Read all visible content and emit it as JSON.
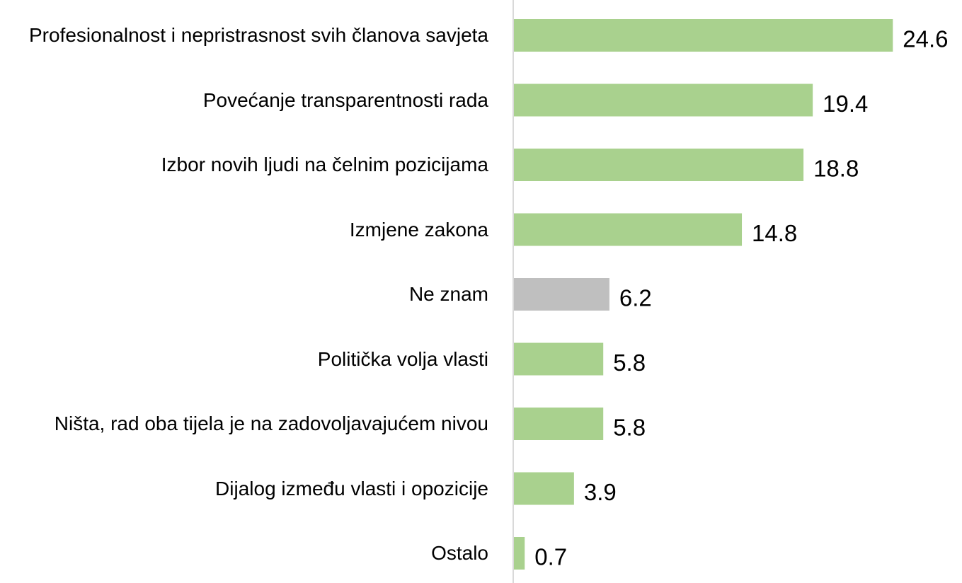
{
  "chart_data": {
    "type": "barh",
    "categories": [
      "Profesionalnost i nepristrasnost svih članova savjeta",
      "Povećanje transparentnosti rada",
      "Izbor novih ljudi na čelnim pozicijama",
      "Izmjene zakona",
      "Ne znam",
      "Politička volja vlasti",
      "Ništa, rad oba tijela je na zadovoljavajućem nivou",
      "Dijalog između vlasti i opozicije",
      "Ostalo"
    ],
    "values": [
      24.6,
      19.4,
      18.8,
      14.8,
      6.2,
      5.8,
      5.8,
      3.9,
      0.7
    ],
    "colors": [
      "#a9d18e",
      "#a9d18e",
      "#a9d18e",
      "#a9d18e",
      "#bfbfbf",
      "#a9d18e",
      "#a9d18e",
      "#a9d18e",
      "#a9d18e"
    ],
    "xlim": [
      0,
      25
    ]
  }
}
